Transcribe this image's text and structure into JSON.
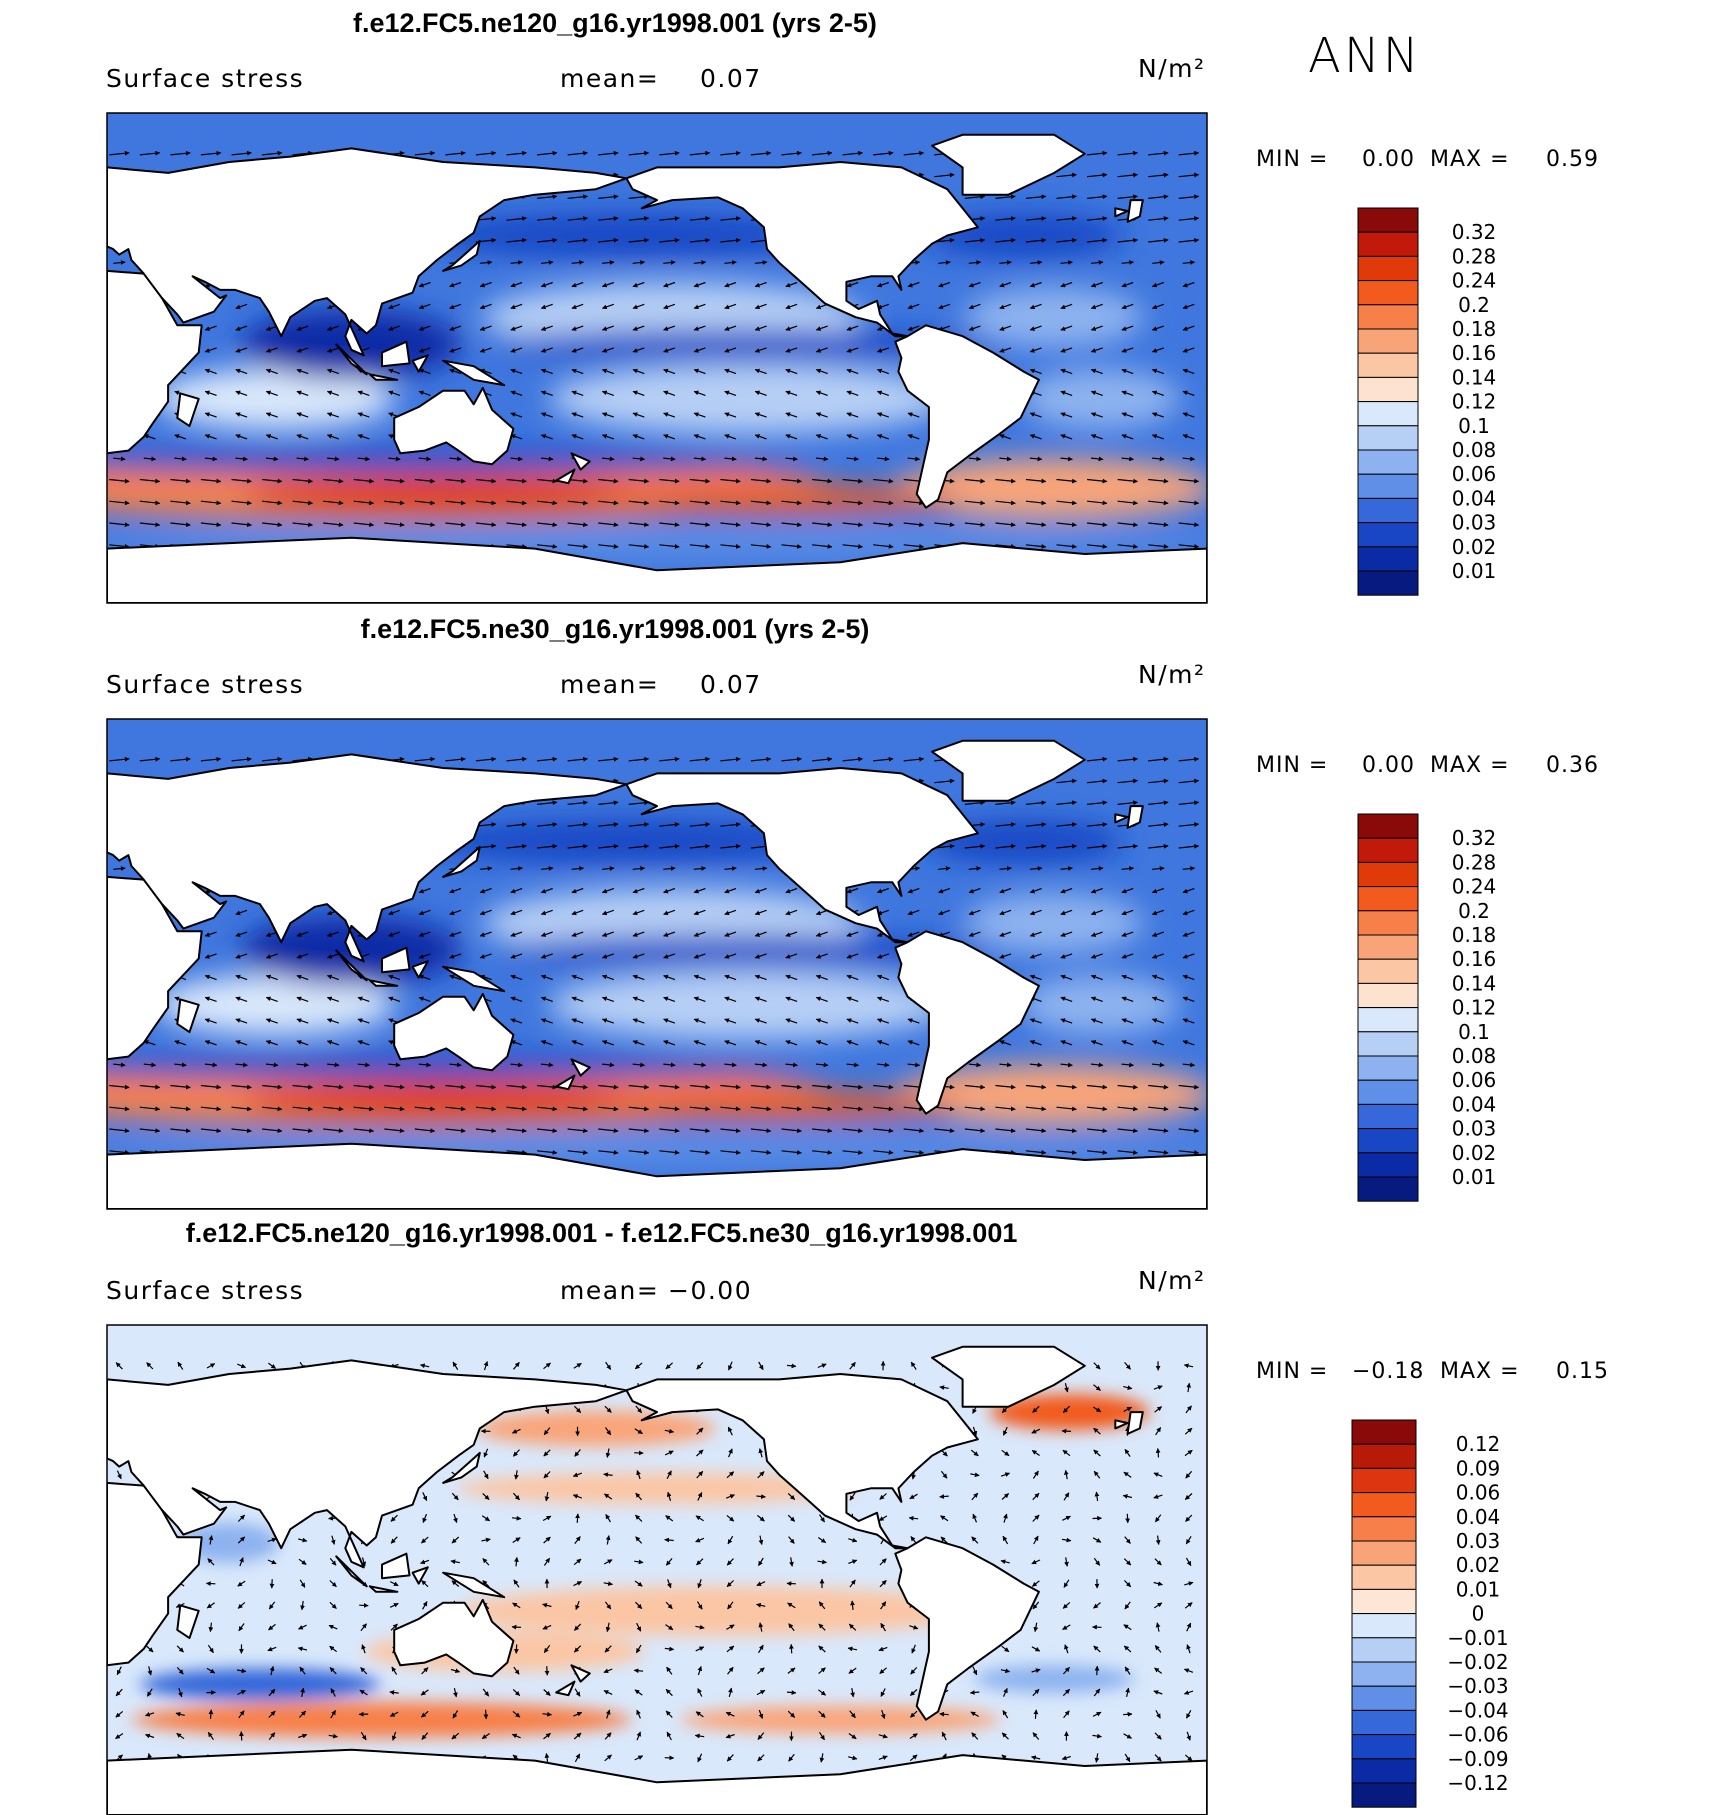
{
  "season": "ANN",
  "panels": [
    {
      "title": "f.e12.FC5.ne120_g16.yr1998.001 (yrs 2-5)",
      "variable": "Surface stress",
      "mean_label": "mean=",
      "mean_value": "0.07",
      "units": "N/m²",
      "min_label": "MIN =",
      "min_value": "0.00",
      "max_label": "MAX =",
      "max_value": "0.59"
    },
    {
      "title": "f.e12.FC5.ne30_g16.yr1998.001 (yrs 2-5)",
      "variable": "Surface stress",
      "mean_label": "mean=",
      "mean_value": "0.07",
      "units": "N/m²",
      "min_label": "MIN =",
      "min_value": "0.00",
      "max_label": "MAX =",
      "max_value": "0.36"
    },
    {
      "title": "f.e12.FC5.ne120_g16.yr1998.001 - f.e12.FC5.ne30_g16.yr1998.001",
      "variable": "Surface stress",
      "mean_label": "mean=",
      "mean_value": "−0.00",
      "units": "N/m²",
      "min_label": "MIN =",
      "min_value": "−0.18",
      "max_label": "MAX =",
      "max_value": "0.15"
    }
  ],
  "chart_data": [
    {
      "type": "heatmap",
      "map_type": "global lat-lon contour with vector arrows",
      "colorbar_levels": [
        "0.32",
        "0.28",
        "0.24",
        "0.2",
        "0.18",
        "0.16",
        "0.14",
        "0.12",
        "0.1",
        "0.08",
        "0.06",
        "0.04",
        "0.03",
        "0.02",
        "0.01"
      ],
      "colorbar_colors": [
        "#8a0a0a",
        "#c11a0a",
        "#e03a0a",
        "#f25a1e",
        "#f7804a",
        "#f9a478",
        "#fbc6a4",
        "#fde2cf",
        "#d9e8fb",
        "#b6cff5",
        "#8db2ef",
        "#5f8fe6",
        "#3668d9",
        "#1846c4",
        "#0a2aa6",
        "#061a80"
      ],
      "features": [
        "strong westerly stress band over the Southern Ocean",
        "low stress in tropical Indian and western Pacific"
      ]
    },
    {
      "type": "heatmap",
      "map_type": "global lat-lon contour with vector arrows",
      "colorbar_levels": [
        "0.32",
        "0.28",
        "0.24",
        "0.2",
        "0.18",
        "0.16",
        "0.14",
        "0.12",
        "0.1",
        "0.08",
        "0.06",
        "0.04",
        "0.03",
        "0.02",
        "0.01"
      ],
      "colorbar_colors": [
        "#8a0a0a",
        "#c11a0a",
        "#e03a0a",
        "#f25a1e",
        "#f7804a",
        "#f9a478",
        "#fbc6a4",
        "#fde2cf",
        "#d9e8fb",
        "#b6cff5",
        "#8db2ef",
        "#5f8fe6",
        "#3668d9",
        "#1846c4",
        "#0a2aa6",
        "#061a80"
      ],
      "features": [
        "strong westerly stress band over the Southern Ocean"
      ]
    },
    {
      "type": "heatmap",
      "map_type": "global lat-lon difference contour with vector arrows",
      "colorbar_levels": [
        "0.12",
        "0.09",
        "0.06",
        "0.04",
        "0.03",
        "0.02",
        "0.01",
        "0",
        "−0.01",
        "−0.02",
        "−0.03",
        "−0.04",
        "−0.06",
        "−0.09",
        "−0.12"
      ],
      "colorbar_colors": [
        "#8a0a0a",
        "#b81a0a",
        "#dc3510",
        "#f25a1e",
        "#f7804a",
        "#f9a478",
        "#fbc6a4",
        "#fde6d6",
        "#d9e8fb",
        "#b6cff5",
        "#8db2ef",
        "#5f8fe6",
        "#3668d9",
        "#1846c4",
        "#0a2aa6",
        "#061a80"
      ],
      "features": [
        "positive difference band south of Australia/Africa",
        "negative difference band near 45S Indian Ocean"
      ]
    }
  ]
}
